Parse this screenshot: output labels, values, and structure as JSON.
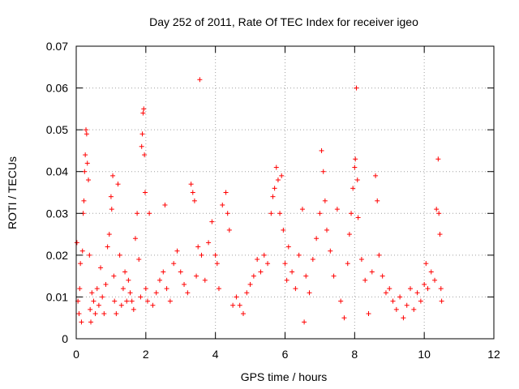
{
  "chart_data": {
    "type": "scatter",
    "title": "Day 252 of 2011, Rate Of TEC Index for receiver igeo",
    "xlabel": "GPS time / hours",
    "ylabel": "ROTI / TECUs",
    "xlim": [
      0,
      12
    ],
    "ylim": [
      0,
      0.07
    ],
    "xticks": [
      0,
      2,
      4,
      6,
      8,
      10,
      12
    ],
    "xtick_labels": [
      "0",
      "2",
      "4",
      "6",
      "8",
      "10",
      "12"
    ],
    "yticks": [
      0,
      0.01,
      0.02,
      0.03,
      0.04,
      0.05,
      0.06,
      0.07
    ],
    "ytick_labels": [
      "0",
      "0.01",
      "0.02",
      "0.03",
      "0.04",
      "0.05",
      "0.06",
      "0.07"
    ],
    "grid": true,
    "marker": "+",
    "color": "#ff0000",
    "series": [
      {
        "name": "ROTI",
        "points": [
          [
            0.02,
            0.023
          ],
          [
            0.05,
            0.009
          ],
          [
            0.08,
            0.006
          ],
          [
            0.1,
            0.012
          ],
          [
            0.12,
            0.018
          ],
          [
            0.15,
            0.004
          ],
          [
            0.18,
            0.021
          ],
          [
            0.2,
            0.03
          ],
          [
            0.22,
            0.033
          ],
          [
            0.24,
            0.04
          ],
          [
            0.26,
            0.044
          ],
          [
            0.28,
            0.05
          ],
          [
            0.3,
            0.049
          ],
          [
            0.32,
            0.042
          ],
          [
            0.35,
            0.038
          ],
          [
            0.38,
            0.02
          ],
          [
            0.4,
            0.007
          ],
          [
            0.42,
            0.004
          ],
          [
            0.45,
            0.011
          ],
          [
            0.5,
            0.009
          ],
          [
            0.55,
            0.006
          ],
          [
            0.6,
            0.012
          ],
          [
            0.65,
            0.008
          ],
          [
            0.7,
            0.017
          ],
          [
            0.75,
            0.01
          ],
          [
            0.8,
            0.006
          ],
          [
            0.85,
            0.013
          ],
          [
            0.9,
            0.022
          ],
          [
            0.95,
            0.025
          ],
          [
            1.0,
            0.034
          ],
          [
            1.02,
            0.031
          ],
          [
            1.05,
            0.039
          ],
          [
            1.08,
            0.015
          ],
          [
            1.1,
            0.009
          ],
          [
            1.15,
            0.006
          ],
          [
            1.2,
            0.037
          ],
          [
            1.25,
            0.02
          ],
          [
            1.3,
            0.008
          ],
          [
            1.35,
            0.012
          ],
          [
            1.4,
            0.016
          ],
          [
            1.45,
            0.009
          ],
          [
            1.5,
            0.014
          ],
          [
            1.55,
            0.011
          ],
          [
            1.6,
            0.009
          ],
          [
            1.65,
            0.007
          ],
          [
            1.7,
            0.024
          ],
          [
            1.75,
            0.03
          ],
          [
            1.8,
            0.019
          ],
          [
            1.85,
            0.01
          ],
          [
            1.88,
            0.046
          ],
          [
            1.9,
            0.049
          ],
          [
            1.92,
            0.054
          ],
          [
            1.94,
            0.055
          ],
          [
            1.96,
            0.044
          ],
          [
            1.98,
            0.035
          ],
          [
            2.0,
            0.012
          ],
          [
            2.05,
            0.009
          ],
          [
            2.1,
            0.03
          ],
          [
            2.2,
            0.008
          ],
          [
            2.3,
            0.011
          ],
          [
            2.4,
            0.014
          ],
          [
            2.5,
            0.016
          ],
          [
            2.55,
            0.032
          ],
          [
            2.6,
            0.012
          ],
          [
            2.7,
            0.009
          ],
          [
            2.8,
            0.018
          ],
          [
            2.9,
            0.021
          ],
          [
            3.0,
            0.016
          ],
          [
            3.1,
            0.013
          ],
          [
            3.2,
            0.011
          ],
          [
            3.3,
            0.037
          ],
          [
            3.35,
            0.035
          ],
          [
            3.4,
            0.033
          ],
          [
            3.45,
            0.015
          ],
          [
            3.5,
            0.022
          ],
          [
            3.55,
            0.062
          ],
          [
            3.6,
            0.02
          ],
          [
            3.7,
            0.014
          ],
          [
            3.8,
            0.023
          ],
          [
            3.9,
            0.028
          ],
          [
            4.0,
            0.02
          ],
          [
            4.05,
            0.018
          ],
          [
            4.1,
            0.012
          ],
          [
            4.2,
            0.032
          ],
          [
            4.3,
            0.035
          ],
          [
            4.35,
            0.03
          ],
          [
            4.4,
            0.026
          ],
          [
            4.5,
            0.008
          ],
          [
            4.6,
            0.01
          ],
          [
            4.7,
            0.008
          ],
          [
            4.8,
            0.006
          ],
          [
            4.9,
            0.011
          ],
          [
            5.0,
            0.013
          ],
          [
            5.1,
            0.015
          ],
          [
            5.2,
            0.019
          ],
          [
            5.3,
            0.016
          ],
          [
            5.4,
            0.02
          ],
          [
            5.5,
            0.018
          ],
          [
            5.6,
            0.03
          ],
          [
            5.65,
            0.034
          ],
          [
            5.7,
            0.036
          ],
          [
            5.75,
            0.041
          ],
          [
            5.8,
            0.038
          ],
          [
            5.85,
            0.03
          ],
          [
            5.9,
            0.039
          ],
          [
            5.95,
            0.026
          ],
          [
            6.0,
            0.018
          ],
          [
            6.05,
            0.014
          ],
          [
            6.1,
            0.022
          ],
          [
            6.2,
            0.016
          ],
          [
            6.3,
            0.012
          ],
          [
            6.4,
            0.02
          ],
          [
            6.5,
            0.031
          ],
          [
            6.55,
            0.004
          ],
          [
            6.6,
            0.015
          ],
          [
            6.7,
            0.011
          ],
          [
            6.8,
            0.019
          ],
          [
            6.9,
            0.024
          ],
          [
            7.0,
            0.03
          ],
          [
            7.05,
            0.045
          ],
          [
            7.1,
            0.04
          ],
          [
            7.15,
            0.033
          ],
          [
            7.2,
            0.026
          ],
          [
            7.3,
            0.021
          ],
          [
            7.4,
            0.015
          ],
          [
            7.5,
            0.031
          ],
          [
            7.6,
            0.009
          ],
          [
            7.7,
            0.005
          ],
          [
            7.8,
            0.018
          ],
          [
            7.85,
            0.025
          ],
          [
            7.9,
            0.03
          ],
          [
            7.95,
            0.036
          ],
          [
            8.0,
            0.041
          ],
          [
            8.02,
            0.043
          ],
          [
            8.05,
            0.06
          ],
          [
            8.08,
            0.038
          ],
          [
            8.1,
            0.029
          ],
          [
            8.2,
            0.019
          ],
          [
            8.3,
            0.014
          ],
          [
            8.4,
            0.006
          ],
          [
            8.5,
            0.016
          ],
          [
            8.6,
            0.039
          ],
          [
            8.65,
            0.033
          ],
          [
            8.7,
            0.02
          ],
          [
            8.8,
            0.015
          ],
          [
            8.9,
            0.011
          ],
          [
            9.0,
            0.012
          ],
          [
            9.1,
            0.009
          ],
          [
            9.2,
            0.007
          ],
          [
            9.3,
            0.01
          ],
          [
            9.4,
            0.005
          ],
          [
            9.5,
            0.008
          ],
          [
            9.6,
            0.012
          ],
          [
            9.7,
            0.007
          ],
          [
            9.8,
            0.011
          ],
          [
            9.9,
            0.009
          ],
          [
            10.0,
            0.013
          ],
          [
            10.05,
            0.018
          ],
          [
            10.1,
            0.012
          ],
          [
            10.2,
            0.016
          ],
          [
            10.3,
            0.014
          ],
          [
            10.35,
            0.031
          ],
          [
            10.4,
            0.043
          ],
          [
            10.42,
            0.03
          ],
          [
            10.45,
            0.025
          ],
          [
            10.48,
            0.012
          ],
          [
            10.5,
            0.009
          ]
        ]
      }
    ]
  }
}
